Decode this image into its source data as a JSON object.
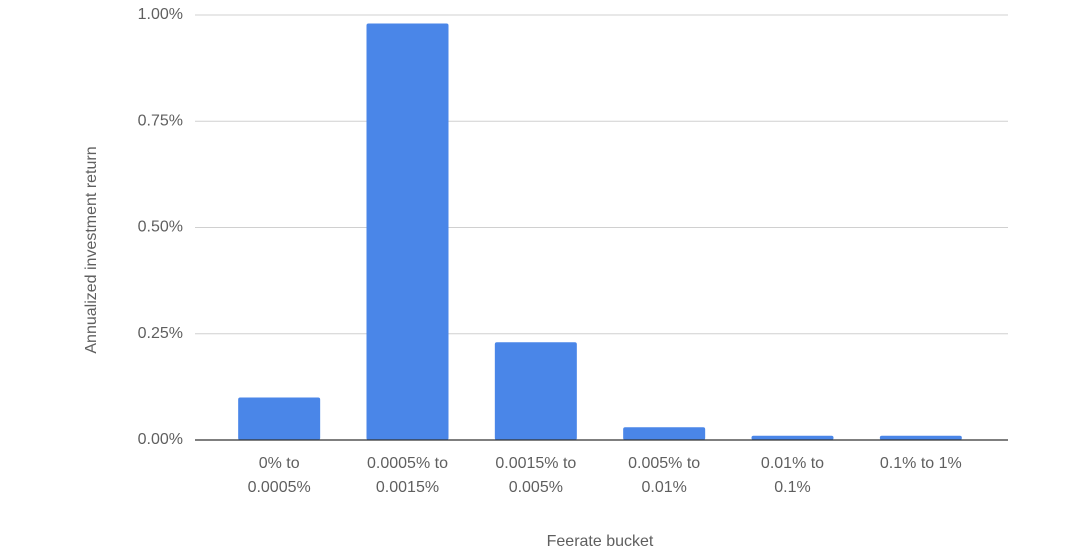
{
  "chart_data": {
    "type": "bar",
    "x_label": "Feerate bucket",
    "y_label": "Annualized investment return",
    "categories": [
      "0% to 0.0005%",
      "0.0005% to 0.0015%",
      "0.0015% to 0.005%",
      "0.005% to 0.01%",
      "0.01% to 0.1%",
      "0.1% to 1%"
    ],
    "values": [
      0.1,
      0.98,
      0.23,
      0.03,
      0.01,
      0.01
    ],
    "color": "#4a86e8",
    "ylim": [
      0,
      1
    ],
    "yticks": [
      {
        "value": 0,
        "label": "0.00%"
      },
      {
        "value": 0.25,
        "label": "0.25%"
      },
      {
        "value": 0.5,
        "label": "0.50%"
      },
      {
        "value": 0.75,
        "label": "0.75%"
      },
      {
        "value": 1,
        "label": "1.00%"
      }
    ],
    "grid": true
  }
}
